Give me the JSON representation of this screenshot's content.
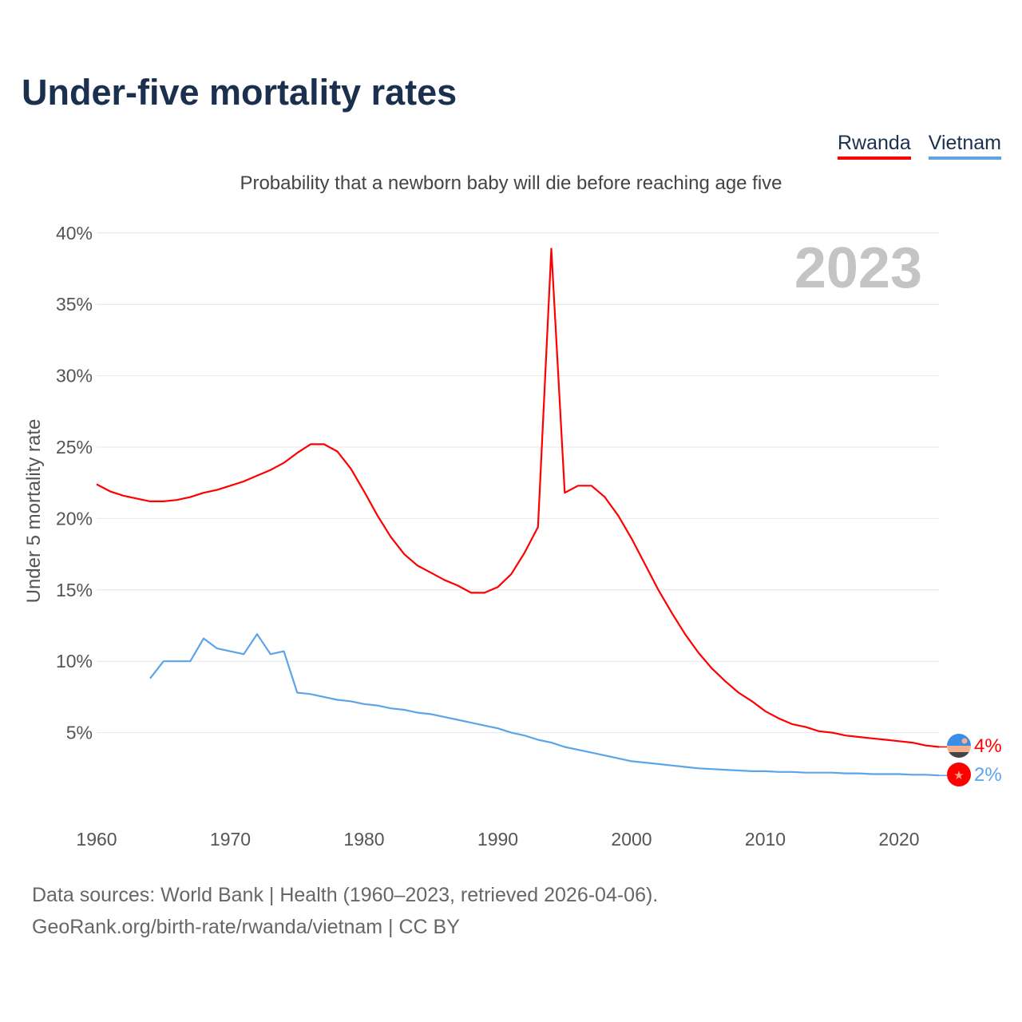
{
  "header": {
    "title": "Under-five mortality rates",
    "subtitle": "Probability that a newborn baby will die before reaching age five"
  },
  "footer": {
    "source_line": "Data sources: World Bank | Health (1960–2023, retrieved 2026-04-06).",
    "credit_line": "GeoRank.org/birth-rate/rwanda/vietnam | CC BY"
  },
  "chart_data": {
    "type": "line",
    "title": "Under-five mortality rates",
    "subtitle": "Probability that a newborn baby will die before reaching age five",
    "xlabel": "",
    "ylabel": "Under 5 mortality rate",
    "year_label": "2023",
    "xlim": [
      1960,
      2023
    ],
    "ylim": [
      0,
      40
    ],
    "x_ticks": [
      1960,
      1970,
      1980,
      1990,
      2000,
      2010,
      2020
    ],
    "y_ticks": [
      {
        "v": 5,
        "label": "5%"
      },
      {
        "v": 10,
        "label": "10%"
      },
      {
        "v": 15,
        "label": "15%"
      },
      {
        "v": 20,
        "label": "20%"
      },
      {
        "v": 25,
        "label": "25%"
      },
      {
        "v": 30,
        "label": "30%"
      },
      {
        "v": 35,
        "label": "35%"
      },
      {
        "v": 40,
        "label": "40%"
      }
    ],
    "grid": true,
    "legend_position": "top-right",
    "series": [
      {
        "name": "Rwanda",
        "color": "#ff0000",
        "end_label": "4%",
        "start_year": 1960,
        "values": [
          22.4,
          21.9,
          21.6,
          21.4,
          21.2,
          21.2,
          21.3,
          21.5,
          21.8,
          22.0,
          22.3,
          22.6,
          23.0,
          23.4,
          23.9,
          24.6,
          25.2,
          25.2,
          24.7,
          23.5,
          21.9,
          20.2,
          18.7,
          17.5,
          16.7,
          16.2,
          15.7,
          15.3,
          14.8,
          14.8,
          15.2,
          16.1,
          17.6,
          19.4,
          38.9,
          21.8,
          22.3,
          22.3,
          21.5,
          20.2,
          18.6,
          16.8,
          15.0,
          13.4,
          11.9,
          10.6,
          9.5,
          8.6,
          7.8,
          7.2,
          6.5,
          6.0,
          5.6,
          5.4,
          5.1,
          5.0,
          4.8,
          4.7,
          4.6,
          4.5,
          4.4,
          4.3,
          4.1,
          4.0
        ]
      },
      {
        "name": "Vietnam",
        "color": "#5ba4e8",
        "end_label": "2%",
        "start_year": 1964,
        "values": [
          8.8,
          10.0,
          10.0,
          10.0,
          11.6,
          10.9,
          10.7,
          10.5,
          11.9,
          10.5,
          10.7,
          7.8,
          7.7,
          7.5,
          7.3,
          7.2,
          7.0,
          6.9,
          6.7,
          6.6,
          6.4,
          6.3,
          6.1,
          5.9,
          5.7,
          5.5,
          5.3,
          5.0,
          4.8,
          4.5,
          4.3,
          4.0,
          3.8,
          3.6,
          3.4,
          3.2,
          3.0,
          2.9,
          2.8,
          2.7,
          2.6,
          2.5,
          2.45,
          2.4,
          2.35,
          2.3,
          2.3,
          2.25,
          2.25,
          2.2,
          2.2,
          2.2,
          2.15,
          2.15,
          2.1,
          2.1,
          2.1,
          2.05,
          2.05,
          2.0
        ]
      }
    ]
  }
}
